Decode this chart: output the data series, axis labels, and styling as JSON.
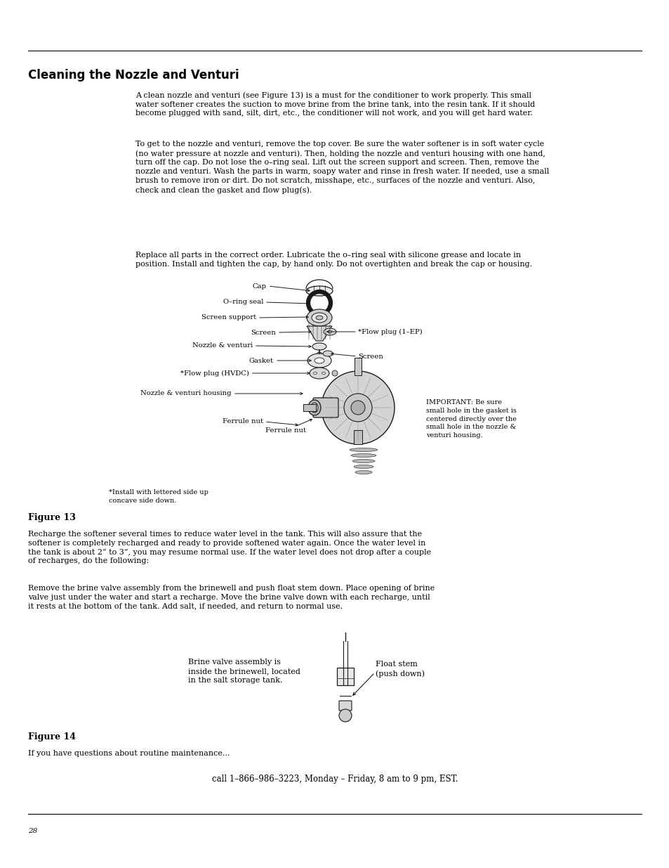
{
  "bg_color": "#ffffff",
  "text_color": "#000000",
  "page_number": "28",
  "title": "Cleaning the Nozzle and Venturi",
  "para1": "A clean nozzle and venturi (see Figure 13) is a must for the conditioner to work properly. This small\nwater softener creates the suction to move brine from the brine tank, into the resin tank. If it should\nbecome plugged with sand, silt, dirt, etc., the conditioner will not work, and you will get hard water.",
  "para2": "To get to the nozzle and venturi, remove the top cover. Be sure the water softener is in soft water cycle\n(no water pressure at nozzle and venturi). Then, holding the nozzle and venturi housing with one hand,\nturn off the cap. Do not lose the o–ring seal. Lift out the screen support and screen. Then, remove the\nnozzle and venturi. Wash the parts in warm, soapy water and rinse in fresh water. If needed, use a small\nbrush to remove iron or dirt. Do not scratch, misshape, etc., surfaces of the nozzle and venturi. Also,\ncheck and clean the gasket and flow plug(s).",
  "para3": "Replace all parts in the correct order. Lubricate the o–ring seal with silicone grease and locate in\nposition. Install and tighten the cap, by hand only. Do not overtighten and break the cap or housing.",
  "figure13_label": "Figure 13",
  "fig13_note": "IMPORTANT: Be sure\nsmall hole in the gasket is\ncentered directly over the\nsmall hole in the nozzle &\nventuri housing.",
  "fig13_install_note": "*Install with lettered side up\nconcave side down.",
  "para4": "Recharge the softener several times to reduce water level in the tank. This will also assure that the\nsoftener is completely recharged and ready to provide softened water again. Once the water level in\nthe tank is about 2” to 3”, you may resume normal use. If the water level does not drop after a couple\nof recharges, do the following:",
  "para5": "Remove the brine valve assembly from the brinewell and push float stem down. Place opening of brine\nvalve just under the water and start a recharge. Move the brine valve down with each recharge, until\nit rests at the bottom of the tank. Add salt, if needed, and return to normal use.",
  "figure14_label": "Figure 14",
  "fig14_label1": "Brine valve assembly is\ninside the brinewell, located\nin the salt storage tank.",
  "fig14_label2": "Float stem\n(push down)",
  "para6": "If you have questions about routine maintenance...",
  "para7": "call 1–866–986–3223, Monday – Friday, 8 am to 9 pm, EST."
}
